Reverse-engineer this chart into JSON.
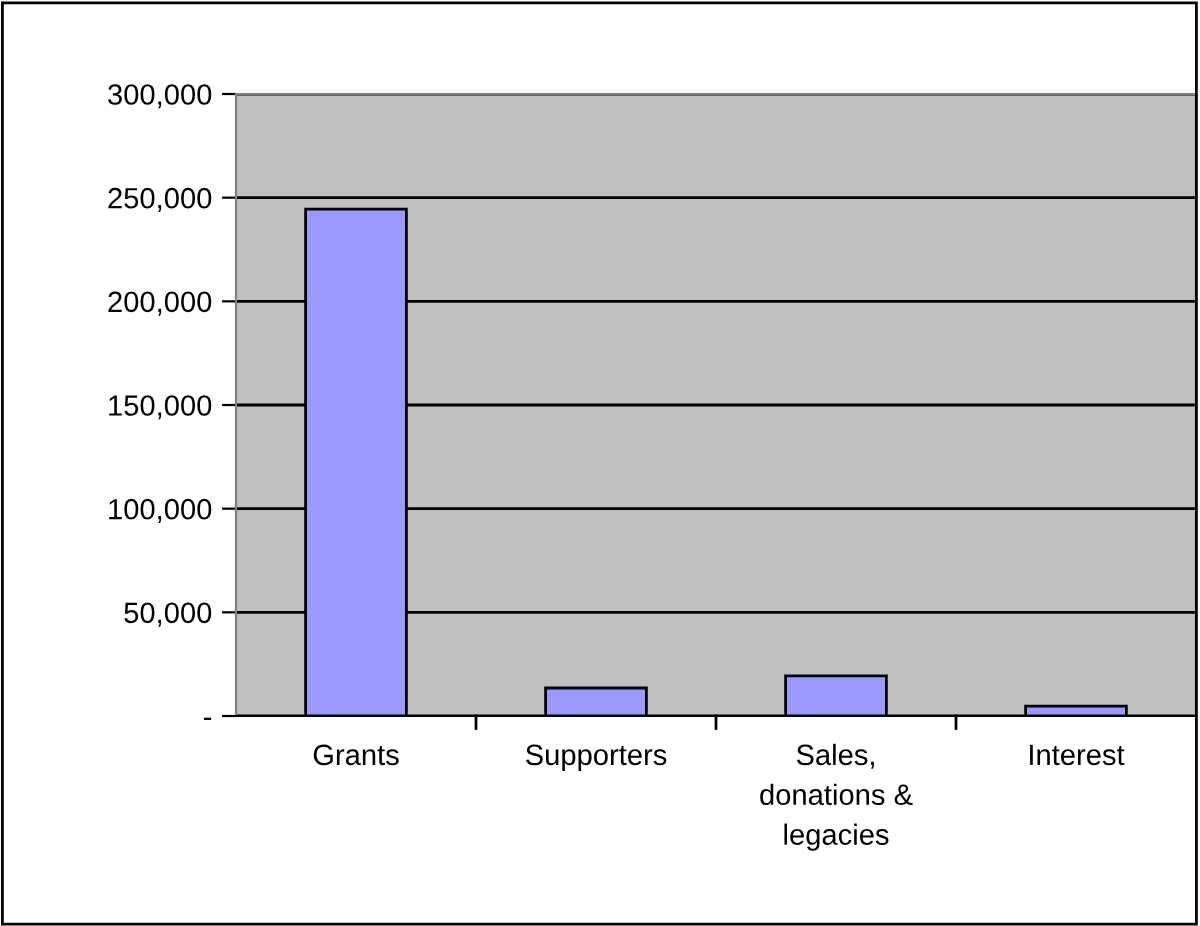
{
  "chart_data": {
    "type": "bar",
    "categories": [
      "Grants",
      "Supporters",
      "Sales,\ndonations &\nlegacies",
      "Interest"
    ],
    "values": [
      244500,
      13500,
      19300,
      4800
    ],
    "color": "#9999ff",
    "ylim": [
      0,
      300000
    ],
    "yticks": [
      {
        "value": 0,
        "label": "-"
      },
      {
        "value": 50000,
        "label": "50,000"
      },
      {
        "value": 100000,
        "label": "100,000"
      },
      {
        "value": 150000,
        "label": "150,000"
      },
      {
        "value": 200000,
        "label": "200,000"
      },
      {
        "value": 250000,
        "label": "250,000"
      },
      {
        "value": 300000,
        "label": "300,000"
      }
    ],
    "grid": "y",
    "legend": false
  }
}
